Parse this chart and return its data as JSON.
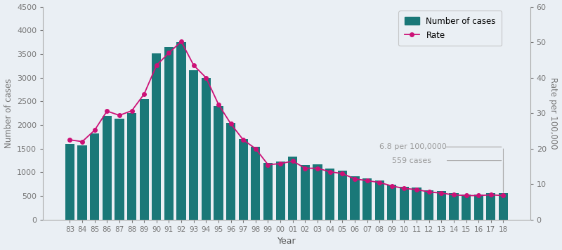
{
  "years": [
    "83",
    "84",
    "85",
    "86",
    "87",
    "88",
    "89",
    "90",
    "91",
    "92",
    "93",
    "94",
    "95",
    "96",
    "97",
    "98",
    "99",
    "00",
    "01",
    "02",
    "03",
    "04",
    "05",
    "06",
    "07",
    "08",
    "09",
    "10",
    "11",
    "12",
    "13",
    "14",
    "15",
    "16",
    "17",
    "18"
  ],
  "cases": [
    1594,
    1571,
    1822,
    2197,
    2139,
    2250,
    2545,
    3520,
    3644,
    3752,
    3160,
    2995,
    2400,
    2043,
    1711,
    1541,
    1207,
    1225,
    1329,
    1155,
    1164,
    1076,
    1038,
    914,
    871,
    835,
    738,
    700,
    681,
    620,
    613,
    561,
    537,
    538,
    567,
    559
  ],
  "rates": [
    22.5,
    22.0,
    25.2,
    30.6,
    29.4,
    30.7,
    35.4,
    43.5,
    47.0,
    50.2,
    43.5,
    40.0,
    32.5,
    27.0,
    22.5,
    20.0,
    15.5,
    15.8,
    16.5,
    14.5,
    14.5,
    13.5,
    13.0,
    11.5,
    11.0,
    10.5,
    9.5,
    8.8,
    8.5,
    7.8,
    7.5,
    7.0,
    6.8,
    6.8,
    7.0,
    6.8
  ],
  "bar_color": "#1a7878",
  "line_color": "#cc1177",
  "marker_color": "#cc1177",
  "background_color": "#eaeff4",
  "ylabel_left": "Number of cases",
  "ylabel_right": "Rate per 100,000",
  "xlabel": "Year",
  "ylim_left": [
    0,
    4500
  ],
  "ylim_right": [
    0,
    60
  ],
  "yticks_left": [
    0,
    500,
    1000,
    1500,
    2000,
    2500,
    3000,
    3500,
    4000,
    4500
  ],
  "yticks_right": [
    0,
    10,
    20,
    30,
    40,
    50,
    60
  ],
  "annotation_rate": "6.8 per 100,0000",
  "annotation_cases": "559 cases",
  "legend_bar_label": "Number of cases",
  "legend_line_label": "Rate"
}
